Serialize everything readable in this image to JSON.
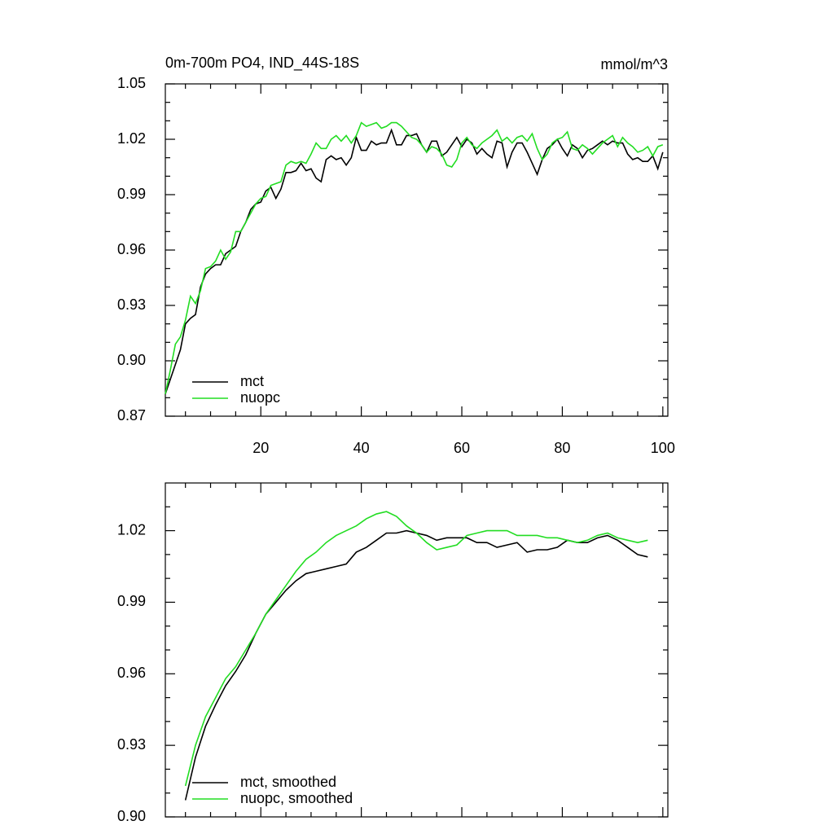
{
  "chart_data": [
    {
      "type": "line",
      "title": "0m-700m PO4, IND_44S-18S",
      "units": "mmol/m^3",
      "x": [
        1,
        2,
        3,
        4,
        5,
        6,
        7,
        8,
        9,
        10,
        11,
        12,
        13,
        14,
        15,
        16,
        17,
        18,
        19,
        20,
        21,
        22,
        23,
        24,
        25,
        26,
        27,
        28,
        29,
        30,
        31,
        32,
        33,
        34,
        35,
        36,
        37,
        38,
        39,
        40,
        41,
        42,
        43,
        44,
        45,
        46,
        47,
        48,
        49,
        50,
        51,
        52,
        53,
        54,
        55,
        56,
        57,
        58,
        59,
        60,
        61,
        62,
        63,
        64,
        65,
        66,
        67,
        68,
        69,
        70,
        71,
        72,
        73,
        74,
        75,
        76,
        77,
        78,
        79,
        80,
        81,
        82,
        83,
        84,
        85,
        86,
        87,
        88,
        89,
        90,
        91,
        92,
        93,
        94,
        95,
        96,
        97,
        98,
        99,
        100
      ],
      "series": [
        {
          "name": "mct",
          "color": "#000000",
          "values": [
            0.882,
            0.89,
            0.898,
            0.906,
            0.92,
            0.923,
            0.925,
            0.94,
            0.947,
            0.95,
            0.952,
            0.952,
            0.958,
            0.96,
            0.962,
            0.97,
            0.975,
            0.982,
            0.985,
            0.986,
            0.992,
            0.994,
            0.988,
            0.993,
            1.002,
            1.002,
            1.003,
            1.007,
            1.003,
            1.004,
            0.999,
            0.997,
            1.009,
            1.011,
            1.009,
            1.01,
            1.006,
            1.01,
            1.021,
            1.014,
            1.014,
            1.019,
            1.017,
            1.018,
            1.018,
            1.025,
            1.017,
            1.017,
            1.022,
            1.022,
            1.023,
            1.017,
            1.013,
            1.019,
            1.019,
            1.011,
            1.013,
            1.017,
            1.021,
            1.016,
            1.02,
            1.018,
            1.012,
            1.015,
            1.012,
            1.01,
            1.019,
            1.018,
            1.005,
            1.013,
            1.018,
            1.018,
            1.013,
            1.007,
            1.001,
            1.009,
            1.015,
            1.017,
            1.02,
            1.015,
            1.011,
            1.017,
            1.015,
            1.01,
            1.014,
            1.015,
            1.017,
            1.019,
            1.017,
            1.019,
            1.018,
            1.018,
            1.012,
            1.009,
            1.01,
            1.008,
            1.008,
            1.011,
            1.004,
            1.013
          ]
        },
        {
          "name": "nuopc",
          "color": "#22dd22",
          "values": [
            0.882,
            0.895,
            0.909,
            0.913,
            0.922,
            0.935,
            0.931,
            0.938,
            0.95,
            0.951,
            0.954,
            0.96,
            0.955,
            0.959,
            0.97,
            0.97,
            0.975,
            0.98,
            0.985,
            0.988,
            0.989,
            0.995,
            0.996,
            0.997,
            1.006,
            1.008,
            1.007,
            1.008,
            1.007,
            1.012,
            1.018,
            1.015,
            1.015,
            1.02,
            1.022,
            1.019,
            1.022,
            1.018,
            1.022,
            1.029,
            1.027,
            1.028,
            1.029,
            1.026,
            1.027,
            1.029,
            1.029,
            1.027,
            1.024,
            1.021,
            1.02,
            1.017,
            1.013,
            1.016,
            1.015,
            1.012,
            1.006,
            1.005,
            1.009,
            1.018,
            1.021,
            1.017,
            1.015,
            1.018,
            1.02,
            1.022,
            1.025,
            1.019,
            1.021,
            1.018,
            1.021,
            1.022,
            1.019,
            1.023,
            1.015,
            1.009,
            1.012,
            1.018,
            1.02,
            1.021,
            1.024,
            1.015,
            1.014,
            1.017,
            1.015,
            1.012,
            1.015,
            1.018,
            1.02,
            1.022,
            1.016,
            1.021,
            1.018,
            1.016,
            1.013,
            1.014,
            1.016,
            1.011,
            1.016,
            1.017
          ]
        }
      ],
      "xlim": [
        1,
        101
      ],
      "xticks": [
        20,
        40,
        60,
        80,
        100
      ],
      "show_xtick_labels": true,
      "ylim": [
        0.87,
        1.05
      ],
      "yticks": [
        {
          "value": 0.87,
          "label": "0.87"
        },
        {
          "value": 0.9,
          "label": "0.90"
        },
        0.93,
        0.96,
        0.99,
        1.02,
        1.05
      ],
      "legend": "lower left"
    },
    {
      "type": "line",
      "x": [
        5,
        7,
        9,
        11,
        13,
        15,
        17,
        19,
        21,
        23,
        25,
        27,
        29,
        31,
        33,
        35,
        37,
        39,
        41,
        43,
        45,
        47,
        49,
        51,
        53,
        55,
        57,
        59,
        61,
        63,
        65,
        67,
        69,
        71,
        73,
        75,
        77,
        79,
        81,
        83,
        85,
        87,
        89,
        91,
        93,
        95,
        97
      ],
      "series": [
        {
          "name": "mct, smoothed",
          "color": "#000000",
          "values": [
            0.907,
            0.925,
            0.938,
            0.947,
            0.955,
            0.961,
            0.968,
            0.977,
            0.985,
            0.99,
            0.995,
            0.999,
            1.002,
            1.003,
            1.004,
            1.005,
            1.006,
            1.011,
            1.013,
            1.016,
            1.019,
            1.019,
            1.02,
            1.019,
            1.018,
            1.016,
            1.017,
            1.017,
            1.017,
            1.015,
            1.015,
            1.013,
            1.014,
            1.015,
            1.011,
            1.012,
            1.012,
            1.013,
            1.016,
            1.015,
            1.015,
            1.017,
            1.018,
            1.016,
            1.013,
            1.01,
            1.009
          ]
        },
        {
          "name": "nuopc, smoothed",
          "color": "#22dd22",
          "values": [
            0.913,
            0.93,
            0.942,
            0.95,
            0.958,
            0.963,
            0.97,
            0.977,
            0.985,
            0.991,
            0.997,
            1.003,
            1.008,
            1.011,
            1.015,
            1.018,
            1.02,
            1.022,
            1.025,
            1.027,
            1.028,
            1.026,
            1.022,
            1.019,
            1.015,
            1.012,
            1.013,
            1.014,
            1.018,
            1.019,
            1.02,
            1.02,
            1.02,
            1.018,
            1.018,
            1.018,
            1.017,
            1.017,
            1.016,
            1.015,
            1.016,
            1.018,
            1.019,
            1.017,
            1.016,
            1.015,
            1.016
          ]
        }
      ],
      "xlim": [
        1,
        101
      ],
      "xticks": [
        20,
        40,
        60,
        80,
        100
      ],
      "show_xtick_labels": false,
      "ylim": [
        0.9,
        1.04
      ],
      "yticks": [
        {
          "value": 0.9,
          "label": "0.90"
        },
        0.93,
        0.96,
        0.99,
        1.02
      ],
      "legend": "lower left"
    }
  ]
}
